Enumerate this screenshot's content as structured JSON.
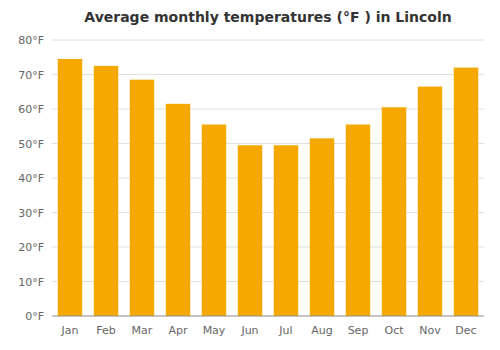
{
  "chart_data": {
    "type": "bar",
    "title": "Average monthly temperatures (°F ) in Lincoln",
    "categories": [
      "Jan",
      "Feb",
      "Mar",
      "Apr",
      "May",
      "Jun",
      "Jul",
      "Aug",
      "Sep",
      "Oct",
      "Nov",
      "Dec"
    ],
    "values": [
      74.5,
      72.5,
      68.5,
      61.5,
      55.5,
      49.5,
      49.5,
      51.5,
      55.5,
      60.5,
      66.5,
      72.0
    ],
    "color": "#F5A800",
    "ylim": [
      0,
      80
    ],
    "yticks": [
      {
        "value": 0,
        "label": "0°F"
      },
      {
        "value": 10,
        "label": "10°F"
      },
      {
        "value": 20,
        "label": "20°F"
      },
      {
        "value": 30,
        "label": "30°F"
      },
      {
        "value": 40,
        "label": "40°F"
      },
      {
        "value": 50,
        "label": "50°F"
      },
      {
        "value": 60,
        "label": "60°F"
      },
      {
        "value": 70,
        "label": "70°F"
      },
      {
        "value": 80,
        "label": "80°F"
      }
    ],
    "grid": true
  }
}
